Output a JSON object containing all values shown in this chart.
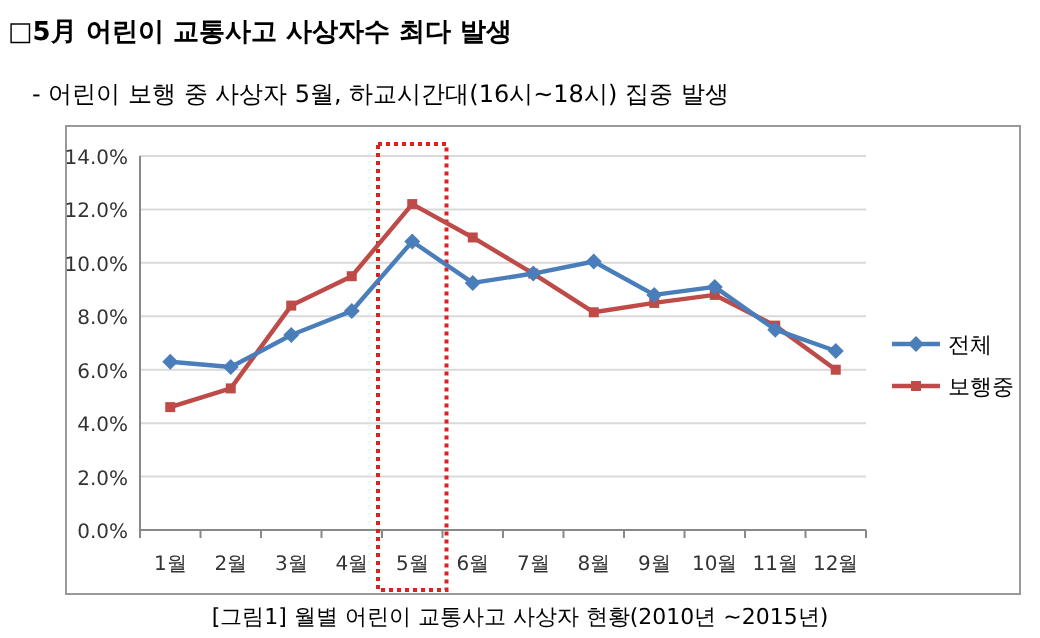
{
  "chart_data": {
    "type": "line",
    "title": "□5月 어린이 교통사고 사상자수 최다 발생",
    "subtitle": "- 어린이 보행 중 사상자 5월, 하교시간대(16시~18시) 집중 발생",
    "categories": [
      "1월",
      "2월",
      "3월",
      "4월",
      "5월",
      "6월",
      "7월",
      "8월",
      "9월",
      "10월",
      "11월",
      "12월"
    ],
    "series": [
      {
        "name": "전체",
        "color": "#4a7ebb",
        "marker": "diamond",
        "values": [
          6.3,
          6.1,
          7.3,
          8.2,
          10.8,
          9.25,
          9.6,
          10.05,
          8.8,
          9.1,
          7.5,
          6.7
        ]
      },
      {
        "name": "보행중",
        "color": "#be4b48",
        "marker": "square",
        "values": [
          4.6,
          5.3,
          8.4,
          9.5,
          12.2,
          10.95,
          9.6,
          8.15,
          8.5,
          8.8,
          7.65,
          6.0
        ]
      }
    ],
    "ylim": [
      0,
      14
    ],
    "yticks": [
      {
        "value": 0,
        "label": "0.0%"
      },
      {
        "value": 2,
        "label": "2.0%"
      },
      {
        "value": 4,
        "label": "4.0%"
      },
      {
        "value": 6,
        "label": "6.0%"
      },
      {
        "value": 8,
        "label": "8.0%"
      },
      {
        "value": 10,
        "label": "10.0%"
      },
      {
        "value": 12,
        "label": "12.0%"
      },
      {
        "value": 14,
        "label": "14.0%"
      }
    ],
    "grid": "y",
    "legend": "right",
    "annotations": [
      "[그림1] 월별 어린이 교통사고 사상자 현황(2010년 ~2015년)"
    ]
  }
}
